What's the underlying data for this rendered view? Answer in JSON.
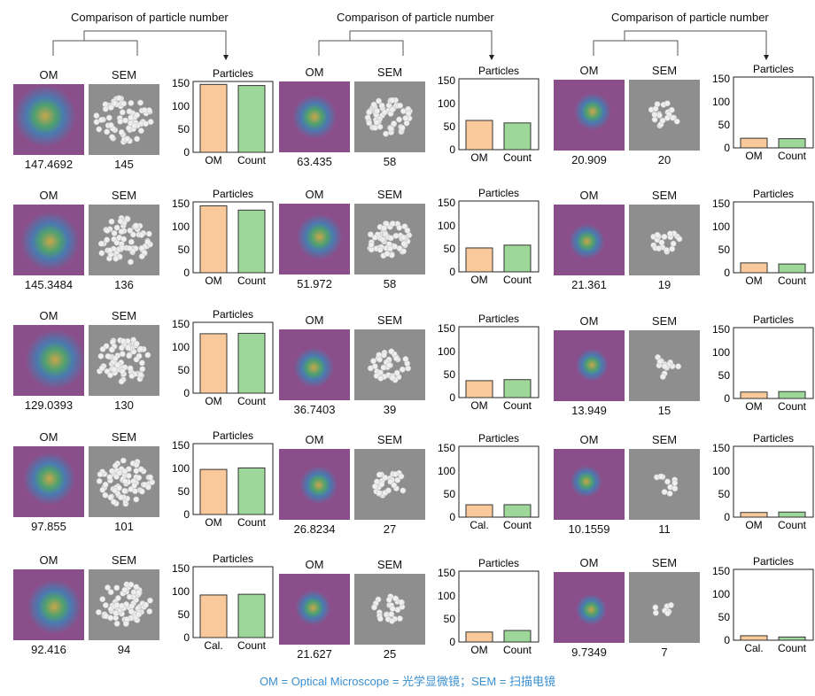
{
  "column_headers": [
    "Comparison of particle number",
    "Comparison of particle number",
    "Comparison of particle number"
  ],
  "image_labels": {
    "om": "OM",
    "sem": "SEM"
  },
  "footer": "OM = Optical Microscope = 光学显微镜；SEM = 扫描电镜",
  "colors": {
    "om_bar": "#f9c89b",
    "count_bar": "#9dd89a",
    "footer": "#3a8fd0"
  },
  "chart_data": [
    {
      "type": "bar",
      "title": "Particles",
      "categories": [
        "OM",
        "Count"
      ],
      "values": [
        147.4692,
        145
      ],
      "ylim": [
        0,
        150
      ],
      "yticks": [
        0,
        50,
        100,
        150
      ]
    },
    {
      "type": "bar",
      "title": "Particles",
      "categories": [
        "OM",
        "Count"
      ],
      "values": [
        145.3484,
        136
      ],
      "ylim": [
        0,
        150
      ],
      "yticks": [
        0,
        50,
        100,
        150
      ]
    },
    {
      "type": "bar",
      "title": "Particles",
      "categories": [
        "OM",
        "Count"
      ],
      "values": [
        129.0393,
        130
      ],
      "ylim": [
        0,
        150
      ],
      "yticks": [
        0,
        50,
        100,
        150
      ]
    },
    {
      "type": "bar",
      "title": "Particles",
      "categories": [
        "OM",
        "Count"
      ],
      "values": [
        97.855,
        101
      ],
      "ylim": [
        0,
        150
      ],
      "yticks": [
        0,
        50,
        100,
        150
      ]
    },
    {
      "type": "bar",
      "title": "Particles",
      "categories": [
        "Cal.",
        "Count"
      ],
      "values": [
        92.416,
        94
      ],
      "ylim": [
        0,
        150
      ],
      "yticks": [
        0,
        50,
        100,
        150
      ]
    },
    {
      "type": "bar",
      "title": "Particles",
      "categories": [
        "OM",
        "Count"
      ],
      "values": [
        63.435,
        58
      ],
      "ylim": [
        0,
        150
      ],
      "yticks": [
        0,
        50,
        100,
        150
      ]
    },
    {
      "type": "bar",
      "title": "Particles",
      "categories": [
        "OM",
        "Count"
      ],
      "values": [
        51.972,
        58
      ],
      "ylim": [
        0,
        150
      ],
      "yticks": [
        0,
        50,
        100,
        150
      ]
    },
    {
      "type": "bar",
      "title": "Particles",
      "categories": [
        "OM",
        "Count"
      ],
      "values": [
        36.7403,
        39
      ],
      "ylim": [
        0,
        150
      ],
      "yticks": [
        0,
        50,
        100,
        150
      ]
    },
    {
      "type": "bar",
      "title": "Particles",
      "categories": [
        "Cal.",
        "Count"
      ],
      "values": [
        26.8234,
        27
      ],
      "ylim": [
        0,
        150
      ],
      "yticks": [
        0,
        50,
        100,
        150
      ]
    },
    {
      "type": "bar",
      "title": "Particles",
      "categories": [
        "OM",
        "Count"
      ],
      "values": [
        21.627,
        25
      ],
      "ylim": [
        0,
        150
      ],
      "yticks": [
        0,
        50,
        100,
        150
      ]
    },
    {
      "type": "bar",
      "title": "Particles",
      "categories": [
        "OM",
        "Count"
      ],
      "values": [
        20.909,
        20
      ],
      "ylim": [
        0,
        150
      ],
      "yticks": [
        0,
        50,
        100,
        150
      ]
    },
    {
      "type": "bar",
      "title": "Particles",
      "categories": [
        "OM",
        "Count"
      ],
      "values": [
        21.361,
        19
      ],
      "ylim": [
        0,
        150
      ],
      "yticks": [
        0,
        50,
        100,
        150
      ]
    },
    {
      "type": "bar",
      "title": "Particles",
      "categories": [
        "OM",
        "Count"
      ],
      "values": [
        13.949,
        15
      ],
      "ylim": [
        0,
        150
      ],
      "yticks": [
        0,
        50,
        100,
        150
      ]
    },
    {
      "type": "bar",
      "title": "Particles",
      "categories": [
        "OM",
        "Count"
      ],
      "values": [
        10.1559,
        11
      ],
      "ylim": [
        0,
        150
      ],
      "yticks": [
        0,
        50,
        100,
        150
      ]
    },
    {
      "type": "bar",
      "title": "Particles",
      "categories": [
        "Cal.",
        "Count"
      ],
      "values": [
        9.7349,
        7
      ],
      "ylim": [
        0,
        150
      ],
      "yticks": [
        0,
        50,
        100,
        150
      ]
    }
  ],
  "panels": [
    {
      "om_value": "147.4692",
      "sem_value": "145"
    },
    {
      "om_value": "145.3484",
      "sem_value": "136"
    },
    {
      "om_value": "129.0393",
      "sem_value": "130"
    },
    {
      "om_value": "97.855",
      "sem_value": "101"
    },
    {
      "om_value": "92.416",
      "sem_value": "94"
    },
    {
      "om_value": "63.435",
      "sem_value": "58"
    },
    {
      "om_value": "51.972",
      "sem_value": "58"
    },
    {
      "om_value": "36.7403",
      "sem_value": "39"
    },
    {
      "om_value": "26.8234",
      "sem_value": "27"
    },
    {
      "om_value": "21.627",
      "sem_value": "25"
    },
    {
      "om_value": "20.909",
      "sem_value": "20"
    },
    {
      "om_value": "21.361",
      "sem_value": "19"
    },
    {
      "om_value": "13.949",
      "sem_value": "15"
    },
    {
      "om_value": "10.1559",
      "sem_value": "11"
    },
    {
      "om_value": "9.7349",
      "sem_value": "7"
    }
  ]
}
